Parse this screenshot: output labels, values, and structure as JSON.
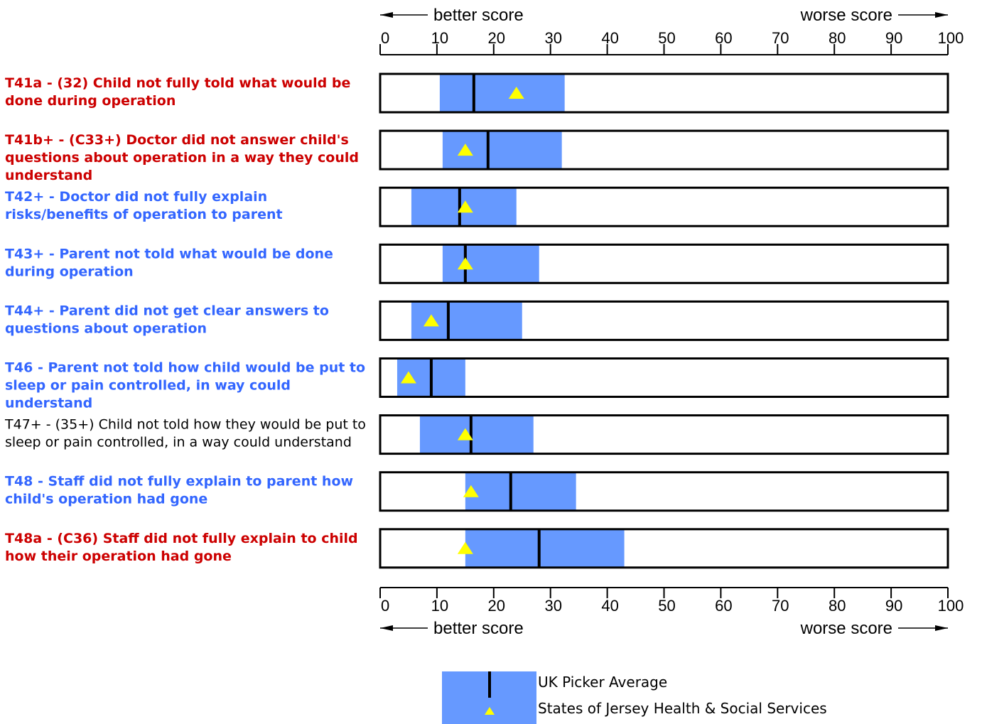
{
  "axis": {
    "better_label": "better score",
    "worse_label": "worse score",
    "ticks": [
      "0",
      "10",
      "20",
      "30",
      "40",
      "50",
      "60",
      "70",
      "80",
      "90",
      "100"
    ]
  },
  "colors": {
    "range_fill": "#6699ff",
    "marker_fill": "#ffff00",
    "average_line": "#000000",
    "label_red": "#cc0000",
    "label_blue": "#3366ff",
    "label_black": "#000000"
  },
  "chart_data": {
    "type": "bar",
    "xlim": [
      0,
      100
    ],
    "grid": false,
    "series_names": {
      "range": "",
      "average": "UK Picker Average",
      "trust": "States of Jersey Health & Social Services"
    },
    "rows": [
      {
        "label": "T41a - (32) Child not fully told what would be done during operation",
        "style": "red",
        "range": [
          10.5,
          32.5
        ],
        "average": 16.5,
        "trust": 24
      },
      {
        "label": "T41b+ - (C33+) Doctor did not answer child's questions about operation in a way they could understand",
        "style": "red",
        "range": [
          11,
          32
        ],
        "average": 19,
        "trust": 15
      },
      {
        "label": "T42+ - Doctor did not fully explain risks/benefits of operation to parent",
        "style": "blue",
        "range": [
          5.5,
          24
        ],
        "average": 14,
        "trust": 15
      },
      {
        "label": "T43+ - Parent not told what would be done during operation",
        "style": "blue",
        "range": [
          11,
          28
        ],
        "average": 15,
        "trust": 15
      },
      {
        "label": "T44+ - Parent did not get clear answers to questions about operation",
        "style": "blue",
        "range": [
          5.5,
          25
        ],
        "average": 12,
        "trust": 9
      },
      {
        "label": "T46 - Parent not told how child would be put to sleep or pain controlled, in way could understand",
        "style": "blue",
        "range": [
          3,
          15
        ],
        "average": 9,
        "trust": 5
      },
      {
        "label": "T47+ - (35+) Child not told how they would be put to sleep or pain controlled, in a way could understand",
        "style": "plain",
        "range": [
          7,
          27
        ],
        "average": 16,
        "trust": 15
      },
      {
        "label": "T48 - Staff did not fully explain to parent how child's operation had gone",
        "style": "blue",
        "range": [
          15,
          34.5
        ],
        "average": 23,
        "trust": 16
      },
      {
        "label": "T48a - (C36) Staff did not fully explain to child how their operation had gone",
        "style": "red",
        "range": [
          15,
          43
        ],
        "average": 28,
        "trust": 15
      }
    ]
  },
  "legend": {
    "average_label": "UK Picker Average",
    "trust_label": "States of Jersey Health & Social Services"
  }
}
